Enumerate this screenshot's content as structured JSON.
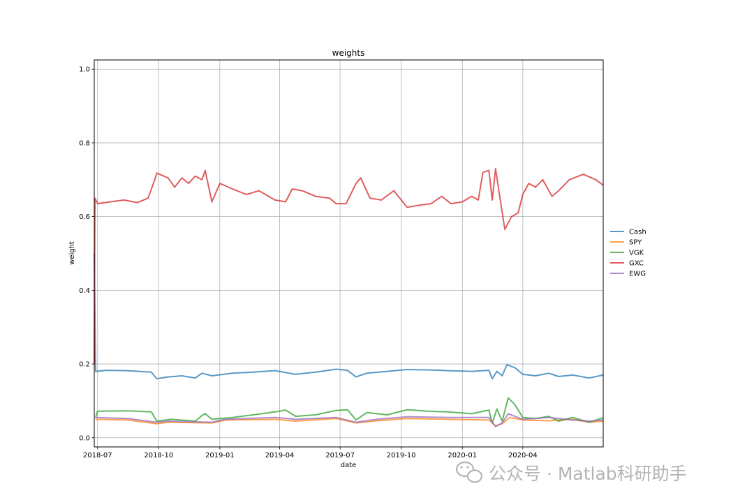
{
  "chart_data": {
    "type": "line",
    "title": "weights",
    "xlabel": "date",
    "ylabel": "weight",
    "ylim": [
      -0.025,
      1.025
    ],
    "xlim": [
      "2018-06-26",
      "2020-07-31"
    ],
    "yticks": [
      0.0,
      0.2,
      0.4,
      0.6,
      0.8,
      1.0
    ],
    "ytick_labels": [
      "0.0",
      "0.2",
      "0.4",
      "0.6",
      "0.8",
      "1.0"
    ],
    "xticks": [
      "2018-07-01",
      "2018-10-01",
      "2019-01-01",
      "2019-04-01",
      "2019-07-01",
      "2019-10-01",
      "2020-01-01",
      "2020-04-01"
    ],
    "xtick_labels": [
      "2018-07",
      "2018-10",
      "2019-01",
      "2019-04",
      "2019-07",
      "2019-10",
      "2020-01",
      "2020-04"
    ],
    "grid": true,
    "legend_position": "right",
    "series": [
      {
        "name": "Cash",
        "color": "#1f77b4",
        "points": [
          [
            "2018-06-26",
            0.5
          ],
          [
            "2018-06-28",
            0.18
          ],
          [
            "2018-07-15",
            0.183
          ],
          [
            "2018-08-15",
            0.182
          ],
          [
            "2018-09-20",
            0.178
          ],
          [
            "2018-09-28",
            0.16
          ],
          [
            "2018-10-15",
            0.165
          ],
          [
            "2018-11-05",
            0.168
          ],
          [
            "2018-11-25",
            0.162
          ],
          [
            "2018-12-05",
            0.175
          ],
          [
            "2018-12-20",
            0.168
          ],
          [
            "2019-01-20",
            0.175
          ],
          [
            "2019-02-20",
            0.178
          ],
          [
            "2019-03-25",
            0.182
          ],
          [
            "2019-04-25",
            0.172
          ],
          [
            "2019-05-25",
            0.178
          ],
          [
            "2019-06-25",
            0.186
          ],
          [
            "2019-07-12",
            0.183
          ],
          [
            "2019-07-25",
            0.165
          ],
          [
            "2019-08-10",
            0.175
          ],
          [
            "2019-09-10",
            0.18
          ],
          [
            "2019-10-10",
            0.185
          ],
          [
            "2019-11-10",
            0.184
          ],
          [
            "2019-12-10",
            0.182
          ],
          [
            "2020-01-15",
            0.18
          ],
          [
            "2020-02-10",
            0.183
          ],
          [
            "2020-02-15",
            0.16
          ],
          [
            "2020-02-22",
            0.18
          ],
          [
            "2020-03-01",
            0.168
          ],
          [
            "2020-03-08",
            0.198
          ],
          [
            "2020-03-20",
            0.19
          ],
          [
            "2020-04-01",
            0.172
          ],
          [
            "2020-04-20",
            0.168
          ],
          [
            "2020-05-10",
            0.175
          ],
          [
            "2020-05-25",
            0.166
          ],
          [
            "2020-06-15",
            0.17
          ],
          [
            "2020-07-10",
            0.162
          ],
          [
            "2020-07-31",
            0.17
          ]
        ]
      },
      {
        "name": "SPY",
        "color": "#ff7f0e",
        "points": [
          [
            "2018-06-28",
            0.05
          ],
          [
            "2018-08-15",
            0.048
          ],
          [
            "2018-09-28",
            0.038
          ],
          [
            "2018-10-15",
            0.042
          ],
          [
            "2018-12-20",
            0.04
          ],
          [
            "2019-01-10",
            0.048
          ],
          [
            "2019-03-25",
            0.05
          ],
          [
            "2019-04-25",
            0.045
          ],
          [
            "2019-06-25",
            0.052
          ],
          [
            "2019-07-25",
            0.04
          ],
          [
            "2019-08-25",
            0.046
          ],
          [
            "2019-10-10",
            0.052
          ],
          [
            "2019-12-10",
            0.05
          ],
          [
            "2020-02-10",
            0.048
          ],
          [
            "2020-02-20",
            0.032
          ],
          [
            "2020-03-01",
            0.038
          ],
          [
            "2020-03-12",
            0.055
          ],
          [
            "2020-04-01",
            0.048
          ],
          [
            "2020-05-10",
            0.046
          ],
          [
            "2020-06-15",
            0.05
          ],
          [
            "2020-07-10",
            0.042
          ],
          [
            "2020-07-31",
            0.045
          ]
        ]
      },
      {
        "name": "VGK",
        "color": "#2ca02c",
        "points": [
          [
            "2018-06-28",
            0.055
          ],
          [
            "2018-07-01",
            0.072
          ],
          [
            "2018-08-15",
            0.073
          ],
          [
            "2018-09-20",
            0.07
          ],
          [
            "2018-09-28",
            0.045
          ],
          [
            "2018-10-20",
            0.05
          ],
          [
            "2018-11-25",
            0.045
          ],
          [
            "2018-12-05",
            0.06
          ],
          [
            "2018-12-10",
            0.065
          ],
          [
            "2018-12-20",
            0.05
          ],
          [
            "2019-01-20",
            0.055
          ],
          [
            "2019-02-20",
            0.062
          ],
          [
            "2019-03-25",
            0.07
          ],
          [
            "2019-04-10",
            0.075
          ],
          [
            "2019-04-25",
            0.058
          ],
          [
            "2019-05-25",
            0.062
          ],
          [
            "2019-06-25",
            0.074
          ],
          [
            "2019-07-12",
            0.076
          ],
          [
            "2019-07-25",
            0.048
          ],
          [
            "2019-08-10",
            0.068
          ],
          [
            "2019-09-10",
            0.062
          ],
          [
            "2019-10-10",
            0.076
          ],
          [
            "2019-11-10",
            0.072
          ],
          [
            "2019-12-10",
            0.07
          ],
          [
            "2020-01-15",
            0.065
          ],
          [
            "2020-02-10",
            0.075
          ],
          [
            "2020-02-15",
            0.04
          ],
          [
            "2020-02-22",
            0.078
          ],
          [
            "2020-03-01",
            0.045
          ],
          [
            "2020-03-10",
            0.108
          ],
          [
            "2020-03-20",
            0.09
          ],
          [
            "2020-04-01",
            0.055
          ],
          [
            "2020-04-20",
            0.052
          ],
          [
            "2020-05-10",
            0.058
          ],
          [
            "2020-05-25",
            0.045
          ],
          [
            "2020-06-15",
            0.055
          ],
          [
            "2020-07-10",
            0.042
          ],
          [
            "2020-07-31",
            0.054
          ]
        ]
      },
      {
        "name": "GXC",
        "color": "#d62728",
        "points": [
          [
            "2018-06-26",
            0.2
          ],
          [
            "2018-06-27",
            0.65
          ],
          [
            "2018-07-01",
            0.635
          ],
          [
            "2018-07-20",
            0.64
          ],
          [
            "2018-08-10",
            0.645
          ],
          [
            "2018-08-30",
            0.638
          ],
          [
            "2018-09-15",
            0.65
          ],
          [
            "2018-09-25",
            0.7
          ],
          [
            "2018-09-28",
            0.718
          ],
          [
            "2018-10-15",
            0.705
          ],
          [
            "2018-10-25",
            0.68
          ],
          [
            "2018-11-05",
            0.705
          ],
          [
            "2018-11-15",
            0.69
          ],
          [
            "2018-11-25",
            0.71
          ],
          [
            "2018-12-05",
            0.7
          ],
          [
            "2018-12-10",
            0.725
          ],
          [
            "2018-12-20",
            0.64
          ],
          [
            "2019-01-01",
            0.69
          ],
          [
            "2019-01-20",
            0.675
          ],
          [
            "2019-02-10",
            0.66
          ],
          [
            "2019-03-01",
            0.67
          ],
          [
            "2019-03-25",
            0.645
          ],
          [
            "2019-04-10",
            0.64
          ],
          [
            "2019-04-20",
            0.675
          ],
          [
            "2019-05-05",
            0.67
          ],
          [
            "2019-05-25",
            0.655
          ],
          [
            "2019-06-15",
            0.65
          ],
          [
            "2019-06-25",
            0.635
          ],
          [
            "2019-07-10",
            0.635
          ],
          [
            "2019-07-25",
            0.69
          ],
          [
            "2019-08-01",
            0.705
          ],
          [
            "2019-08-15",
            0.65
          ],
          [
            "2019-09-01",
            0.645
          ],
          [
            "2019-09-20",
            0.67
          ],
          [
            "2019-10-01",
            0.645
          ],
          [
            "2019-10-10",
            0.625
          ],
          [
            "2019-10-25",
            0.63
          ],
          [
            "2019-11-15",
            0.635
          ],
          [
            "2019-12-01",
            0.655
          ],
          [
            "2019-12-15",
            0.635
          ],
          [
            "2020-01-01",
            0.64
          ],
          [
            "2020-01-15",
            0.655
          ],
          [
            "2020-01-25",
            0.645
          ],
          [
            "2020-02-01",
            0.72
          ],
          [
            "2020-02-10",
            0.725
          ],
          [
            "2020-02-15",
            0.645
          ],
          [
            "2020-02-20",
            0.73
          ],
          [
            "2020-02-25",
            0.67
          ],
          [
            "2020-03-05",
            0.565
          ],
          [
            "2020-03-15",
            0.6
          ],
          [
            "2020-03-25",
            0.61
          ],
          [
            "2020-04-01",
            0.66
          ],
          [
            "2020-04-10",
            0.69
          ],
          [
            "2020-04-20",
            0.68
          ],
          [
            "2020-05-01",
            0.7
          ],
          [
            "2020-05-15",
            0.655
          ],
          [
            "2020-05-25",
            0.67
          ],
          [
            "2020-06-10",
            0.7
          ],
          [
            "2020-07-01",
            0.715
          ],
          [
            "2020-07-20",
            0.7
          ],
          [
            "2020-07-31",
            0.685
          ]
        ]
      },
      {
        "name": "EWG",
        "color": "#9467bd",
        "points": [
          [
            "2018-06-28",
            0.055
          ],
          [
            "2018-08-15",
            0.052
          ],
          [
            "2018-09-28",
            0.042
          ],
          [
            "2018-10-15",
            0.045
          ],
          [
            "2018-12-20",
            0.042
          ],
          [
            "2019-01-10",
            0.05
          ],
          [
            "2019-03-25",
            0.055
          ],
          [
            "2019-04-25",
            0.05
          ],
          [
            "2019-06-25",
            0.055
          ],
          [
            "2019-07-25",
            0.042
          ],
          [
            "2019-08-25",
            0.05
          ],
          [
            "2019-10-10",
            0.057
          ],
          [
            "2019-12-10",
            0.055
          ],
          [
            "2020-02-10",
            0.055
          ],
          [
            "2020-02-20",
            0.03
          ],
          [
            "2020-03-01",
            0.04
          ],
          [
            "2020-03-10",
            0.065
          ],
          [
            "2020-04-01",
            0.05
          ],
          [
            "2020-05-10",
            0.055
          ],
          [
            "2020-06-15",
            0.048
          ],
          [
            "2020-07-10",
            0.045
          ],
          [
            "2020-07-31",
            0.048
          ]
        ]
      }
    ]
  },
  "watermark": {
    "text": "公众号 · Matlab科研助手",
    "icon": "wechat-icon"
  }
}
